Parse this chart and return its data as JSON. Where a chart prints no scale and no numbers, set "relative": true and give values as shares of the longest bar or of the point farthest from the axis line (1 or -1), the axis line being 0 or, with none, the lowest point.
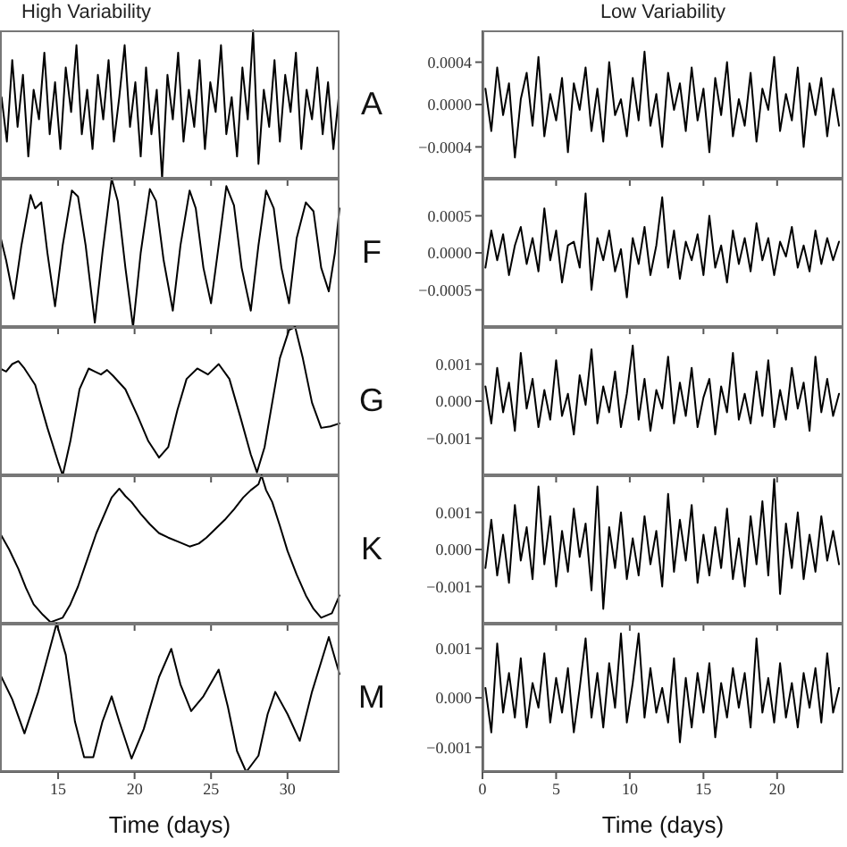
{
  "chart_data": [
    {
      "type": "line",
      "title": "High Variability",
      "relative": true,
      "annotations": [
        "A"
      ],
      "tick_labels": false,
      "xlim": [
        11.2,
        33.4
      ],
      "xticks": [
        15,
        20,
        25,
        30
      ],
      "x": [
        11.3,
        11.65,
        12,
        12.35,
        12.7,
        13.05,
        13.4,
        13.75,
        14.1,
        14.45,
        14.8,
        15.15,
        15.5,
        15.85,
        16.2,
        16.55,
        16.9,
        17.25,
        17.6,
        17.95,
        18.3,
        18.65,
        19,
        19.35,
        19.7,
        20.05,
        20.4,
        20.75,
        21.1,
        21.45,
        21.8,
        22.15,
        22.5,
        22.85,
        23.2,
        23.55,
        23.9,
        24.25,
        24.6,
        24.95,
        25.3,
        25.65,
        26,
        26.35,
        26.7,
        27.05,
        27.4,
        27.75,
        28.1,
        28.45,
        28.8,
        29.15,
        29.5,
        29.85,
        30.2,
        30.55,
        30.9,
        31.25,
        31.6,
        31.95,
        32.3,
        32.65,
        33,
        33.35
      ],
      "series": [
        {
          "color": "#000000",
          "values": [
            0.55,
            0.25,
            0.8,
            0.35,
            0.7,
            0.15,
            0.6,
            0.4,
            0.85,
            0.3,
            0.65,
            0.2,
            0.75,
            0.45,
            0.9,
            0.3,
            0.6,
            0.2,
            0.7,
            0.4,
            0.8,
            0.25,
            0.55,
            0.9,
            0.35,
            0.65,
            0.15,
            0.75,
            0.3,
            0.6,
            0.0,
            0.7,
            0.4,
            0.85,
            0.25,
            0.6,
            0.35,
            0.8,
            0.2,
            0.65,
            0.45,
            0.9,
            0.3,
            0.55,
            0.15,
            0.75,
            0.4,
            1.0,
            0.1,
            0.6,
            0.35,
            0.8,
            0.25,
            0.7,
            0.45,
            0.85,
            0.2,
            0.6,
            0.4,
            0.75,
            0.3,
            0.65,
            0.2,
            0.55
          ]
        }
      ]
    },
    {
      "type": "line",
      "title": "Low Variability",
      "tick_labels": "y",
      "xlim": [
        0,
        24.5
      ],
      "xticks": [
        0,
        5,
        10,
        15,
        20
      ],
      "ylim": [
        -0.0007,
        0.0007
      ],
      "yticks": [
        {
          "value": -0.0004,
          "label": "−0.0004"
        },
        {
          "value": 0,
          "label": "0.0000"
        },
        {
          "value": 0.0004,
          "label": "0.0004"
        }
      ],
      "x": [
        0.2,
        0.6,
        1,
        1.4,
        1.8,
        2.2,
        2.6,
        3,
        3.4,
        3.8,
        4.2,
        4.6,
        5,
        5.4,
        5.8,
        6.2,
        6.6,
        7,
        7.4,
        7.8,
        8.2,
        8.6,
        9,
        9.4,
        9.8,
        10.2,
        10.6,
        11,
        11.4,
        11.8,
        12.2,
        12.6,
        13,
        13.4,
        13.8,
        14.2,
        14.6,
        15,
        15.4,
        15.8,
        16.2,
        16.6,
        17,
        17.4,
        17.8,
        18.2,
        18.6,
        19,
        19.4,
        19.8,
        20.2,
        20.6,
        21,
        21.4,
        21.8,
        22.2,
        22.6,
        23,
        23.4,
        23.8,
        24.2
      ],
      "series": [
        {
          "color": "#000000",
          "values": [
            0.00015,
            -0.00025,
            0.00035,
            -0.0001,
            0.0002,
            -0.0005,
            5e-05,
            0.0003,
            -0.0002,
            0.00045,
            -0.0003,
            0.0001,
            -0.00015,
            0.00025,
            -0.00045,
            0.0002,
            -5e-05,
            0.00035,
            -0.00025,
            0.00015,
            -0.00035,
            0.0004,
            -0.0001,
            5e-05,
            -0.0003,
            0.00025,
            -0.00015,
            0.0005,
            -0.0002,
            0.0001,
            -0.0004,
            0.0003,
            -5e-05,
            0.0002,
            -0.00025,
            0.00035,
            -0.00015,
            0.00015,
            -0.00045,
            0.00025,
            -0.0001,
            0.0004,
            -0.0003,
            5e-05,
            -0.0002,
            0.0003,
            -0.00035,
            0.00015,
            -5e-05,
            0.00045,
            -0.00025,
            0.0001,
            -0.00015,
            0.00035,
            -0.0004,
            0.0002,
            -0.0001,
            0.00025,
            -0.0003,
            0.00015,
            -0.0002
          ]
        }
      ]
    },
    {
      "type": "line",
      "relative": true,
      "annotations": [
        "F"
      ],
      "tick_labels": false,
      "xlim": [
        11.2,
        33.4
      ],
      "xticks": [
        15,
        20,
        25,
        30
      ],
      "x": [
        11.2,
        11.6,
        12.1,
        12.6,
        13.2,
        13.5,
        13.9,
        14.3,
        14.8,
        15.3,
        15.9,
        16.3,
        16.8,
        17.4,
        17.9,
        18.5,
        18.9,
        19.4,
        19.9,
        20.4,
        21,
        21.4,
        21.9,
        22.5,
        23,
        23.6,
        24,
        24.5,
        25,
        25.5,
        26,
        26.5,
        27,
        27.6,
        28.1,
        28.6,
        29.1,
        29.6,
        30.1,
        30.6,
        31.2,
        31.7,
        32.2,
        32.7,
        33.1,
        33.4
      ],
      "series": [
        {
          "color": "#000000",
          "values": [
            0.62,
            0.45,
            0.19,
            0.55,
            0.89,
            0.8,
            0.84,
            0.5,
            0.14,
            0.55,
            0.92,
            0.88,
            0.55,
            0.03,
            0.5,
            1.0,
            0.85,
            0.4,
            0.0,
            0.5,
            0.93,
            0.85,
            0.45,
            0.11,
            0.55,
            0.92,
            0.8,
            0.4,
            0.16,
            0.55,
            0.95,
            0.82,
            0.4,
            0.11,
            0.55,
            0.92,
            0.8,
            0.4,
            0.16,
            0.6,
            0.84,
            0.78,
            0.4,
            0.24,
            0.5,
            0.8
          ]
        }
      ]
    },
    {
      "type": "line",
      "tick_labels": "y",
      "xlim": [
        0,
        24.5
      ],
      "xticks": [
        0,
        5,
        10,
        15,
        20
      ],
      "ylim": [
        -0.001,
        0.001
      ],
      "yticks": [
        {
          "value": -0.0005,
          "label": "−0.0005"
        },
        {
          "value": 0,
          "label": "0.0000"
        },
        {
          "value": 0.0005,
          "label": "0.0005"
        }
      ],
      "x": [
        0.2,
        0.6,
        1,
        1.4,
        1.8,
        2.2,
        2.6,
        3,
        3.4,
        3.8,
        4.2,
        4.6,
        5,
        5.4,
        5.8,
        6.2,
        6.6,
        7,
        7.4,
        7.8,
        8.2,
        8.6,
        9,
        9.4,
        9.8,
        10.2,
        10.6,
        11,
        11.4,
        11.8,
        12.2,
        12.6,
        13,
        13.4,
        13.8,
        14.2,
        14.6,
        15,
        15.4,
        15.8,
        16.2,
        16.6,
        17,
        17.4,
        17.8,
        18.2,
        18.6,
        19,
        19.4,
        19.8,
        20.2,
        20.6,
        21,
        21.4,
        21.8,
        22.2,
        22.6,
        23,
        23.4,
        23.8,
        24.2
      ],
      "series": [
        {
          "color": "#000000",
          "values": [
            -0.0002,
            0.0003,
            -0.0001,
            0.00025,
            -0.0003,
            0.0001,
            0.00035,
            -0.00015,
            0.0002,
            -0.00025,
            0.0006,
            -0.0001,
            0.0003,
            -0.0004,
            0.0001,
            0.00015,
            -0.0002,
            0.0008,
            -0.0005,
            0.0002,
            -0.0001,
            0.0003,
            -0.00025,
            5e-05,
            -0.0006,
            0.0002,
            -0.00015,
            0.00035,
            -0.0003,
            0.0001,
            0.00075,
            -0.0002,
            0.0003,
            -0.00035,
            0.00015,
            -0.0001,
            0.00025,
            -0.0003,
            0.0005,
            -0.0002,
            0.0001,
            -0.0004,
            0.0003,
            -0.00015,
            0.0002,
            -0.00025,
            0.0004,
            -0.0001,
            0.0002,
            -0.0003,
            0.00015,
            -5e-05,
            0.00035,
            -0.0002,
            0.0001,
            -0.00025,
            0.0003,
            -0.00015,
            0.0002,
            -0.0001,
            0.00015
          ]
        }
      ]
    },
    {
      "type": "line",
      "relative": true,
      "annotations": [
        "G"
      ],
      "tick_labels": false,
      "xlim": [
        11.2,
        33.4
      ],
      "xticks": [
        15,
        20,
        25,
        30
      ],
      "x": [
        11.2,
        11.6,
        12,
        12.4,
        12.8,
        13.5,
        14.3,
        15,
        15.3,
        15.8,
        16.4,
        17,
        17.4,
        17.8,
        18.2,
        18.6,
        19.4,
        20.2,
        20.9,
        21.6,
        22.2,
        22.8,
        23.4,
        24.1,
        24.8,
        25.1,
        25.5,
        26.2,
        26.9,
        27.6,
        28,
        28.5,
        29,
        29.5,
        30.1,
        30.5,
        31,
        31.6,
        32.2,
        32.8,
        33.4
      ],
      "series": [
        {
          "color": "#000000",
          "values": [
            0.72,
            0.7,
            0.75,
            0.77,
            0.72,
            0.61,
            0.32,
            0.09,
            0.0,
            0.23,
            0.58,
            0.72,
            0.7,
            0.68,
            0.71,
            0.67,
            0.58,
            0.4,
            0.23,
            0.12,
            0.19,
            0.44,
            0.65,
            0.72,
            0.68,
            0.71,
            0.75,
            0.65,
            0.4,
            0.14,
            0.02,
            0.19,
            0.49,
            0.79,
            0.98,
            1.0,
            0.79,
            0.49,
            0.32,
            0.33,
            0.35
          ]
        }
      ]
    },
    {
      "type": "line",
      "tick_labels": "y",
      "xlim": [
        0,
        24.5
      ],
      "xticks": [
        0,
        5,
        10,
        15,
        20
      ],
      "ylim": [
        -0.002,
        0.002
      ],
      "yticks": [
        {
          "value": -0.001,
          "label": "−0.001"
        },
        {
          "value": 0,
          "label": "0.000"
        },
        {
          "value": 0.001,
          "label": "0.001"
        }
      ],
      "x": [
        0.2,
        0.6,
        1,
        1.4,
        1.8,
        2.2,
        2.6,
        3,
        3.4,
        3.8,
        4.2,
        4.6,
        5,
        5.4,
        5.8,
        6.2,
        6.6,
        7,
        7.4,
        7.8,
        8.2,
        8.6,
        9,
        9.4,
        9.8,
        10.2,
        10.6,
        11,
        11.4,
        11.8,
        12.2,
        12.6,
        13,
        13.4,
        13.8,
        14.2,
        14.6,
        15,
        15.4,
        15.8,
        16.2,
        16.6,
        17,
        17.4,
        17.8,
        18.2,
        18.6,
        19,
        19.4,
        19.8,
        20.2,
        20.6,
        21,
        21.4,
        21.8,
        22.2,
        22.6,
        23,
        23.4,
        23.8,
        24.2
      ],
      "series": [
        {
          "color": "#000000",
          "values": [
            0.0004,
            -0.0006,
            0.0009,
            -0.0003,
            0.0005,
            -0.0008,
            0.0013,
            -0.0002,
            0.0006,
            -0.0007,
            0.0003,
            -0.0005,
            0.0011,
            -0.0004,
            0.0002,
            -0.0009,
            0.0007,
            -0.0001,
            0.0014,
            -0.0006,
            0.0004,
            -0.0003,
            0.0008,
            -0.0007,
            0.0002,
            0.0015,
            -0.0005,
            0.0006,
            -0.0008,
            0.0003,
            -0.0002,
            0.0012,
            -0.0006,
            0.0005,
            -0.0004,
            0.0009,
            -0.0007,
            0.0001,
            0.0006,
            -0.0009,
            0.0004,
            -0.0003,
            0.0013,
            -0.0005,
            0.0002,
            -0.0006,
            0.0008,
            -0.0004,
            0.0011,
            -0.0007,
            0.0003,
            -0.0005,
            0.0009,
            -0.0002,
            0.0005,
            -0.0008,
            0.0012,
            -0.0003,
            0.0006,
            -0.0004,
            0.0002
          ]
        }
      ]
    },
    {
      "type": "line",
      "relative": true,
      "annotations": [
        "K"
      ],
      "tick_labels": false,
      "xlim": [
        11.2,
        33.4
      ],
      "xticks": [
        15,
        20,
        25,
        30
      ],
      "x": [
        11.2,
        11.8,
        12.4,
        12.9,
        13.4,
        14,
        14.5,
        15.3,
        15.8,
        16.3,
        16.9,
        17.5,
        18.5,
        19,
        19.4,
        19.8,
        20.4,
        21,
        21.6,
        22.2,
        22.9,
        23.6,
        24.2,
        24.7,
        25.3,
        25.9,
        26.5,
        27.1,
        27.6,
        28.1,
        28.3,
        28.6,
        29,
        29.5,
        30,
        30.6,
        31.2,
        31.7,
        32.2,
        32.9,
        33.4
      ],
      "series": [
        {
          "color": "#000000",
          "values": [
            0.61,
            0.5,
            0.37,
            0.24,
            0.13,
            0.06,
            0.01,
            0.04,
            0.13,
            0.25,
            0.43,
            0.61,
            0.85,
            0.91,
            0.86,
            0.82,
            0.74,
            0.67,
            0.61,
            0.58,
            0.55,
            0.52,
            0.54,
            0.58,
            0.64,
            0.7,
            0.77,
            0.85,
            0.9,
            0.94,
            1.0,
            0.9,
            0.82,
            0.66,
            0.49,
            0.33,
            0.19,
            0.1,
            0.04,
            0.07,
            0.19
          ]
        }
      ]
    },
    {
      "type": "line",
      "tick_labels": "y",
      "xlim": [
        0,
        24.5
      ],
      "xticks": [
        0,
        5,
        10,
        15,
        20
      ],
      "ylim": [
        -0.002,
        0.002
      ],
      "yticks": [
        {
          "value": -0.001,
          "label": "−0.001"
        },
        {
          "value": 0,
          "label": "0.000"
        },
        {
          "value": 0.001,
          "label": "0.001"
        }
      ],
      "x": [
        0.2,
        0.6,
        1,
        1.4,
        1.8,
        2.2,
        2.6,
        3,
        3.4,
        3.8,
        4.2,
        4.6,
        5,
        5.4,
        5.8,
        6.2,
        6.6,
        7,
        7.4,
        7.8,
        8.2,
        8.6,
        9,
        9.4,
        9.8,
        10.2,
        10.6,
        11,
        11.4,
        11.8,
        12.2,
        12.6,
        13,
        13.4,
        13.8,
        14.2,
        14.6,
        15,
        15.4,
        15.8,
        16.2,
        16.6,
        17,
        17.4,
        17.8,
        18.2,
        18.6,
        19,
        19.4,
        19.8,
        20.2,
        20.6,
        21,
        21.4,
        21.8,
        22.2,
        22.6,
        23,
        23.4,
        23.8,
        24.2
      ],
      "series": [
        {
          "color": "#000000",
          "values": [
            -0.0005,
            0.0008,
            -0.0007,
            0.0004,
            -0.0009,
            0.0012,
            -0.0003,
            0.0006,
            -0.0008,
            0.0017,
            -0.0004,
            0.0009,
            -0.001,
            0.0005,
            -0.0006,
            0.0011,
            -0.0002,
            0.0007,
            -0.0011,
            0.0017,
            -0.0016,
            0.0006,
            -0.0005,
            0.001,
            -0.0008,
            0.0003,
            -0.0007,
            0.0009,
            -0.0004,
            0.0005,
            -0.001,
            0.0015,
            -0.0006,
            0.0008,
            -0.0003,
            0.0012,
            -0.0009,
            0.0004,
            -0.0007,
            0.0006,
            -0.0005,
            0.0011,
            -0.0008,
            0.0003,
            -0.001,
            0.0009,
            -0.0004,
            0.0013,
            -0.0007,
            0.0019,
            -0.0012,
            0.0007,
            -0.0005,
            0.001,
            -0.0008,
            0.0004,
            -0.0006,
            0.0009,
            -0.0003,
            0.0005,
            -0.0004
          ]
        }
      ]
    },
    {
      "type": "line",
      "relative": true,
      "annotations": [
        "M"
      ],
      "tick_labels": "x",
      "xlabel": "Time (days)",
      "xlim": [
        11.2,
        33.4
      ],
      "xticks": [
        15,
        20,
        25,
        30
      ],
      "x": [
        11.2,
        12,
        12.8,
        13.7,
        14.9,
        15.5,
        16.1,
        16.7,
        17.3,
        17.9,
        18.5,
        19,
        19.8,
        20.6,
        21.6,
        22.4,
        23,
        23.7,
        24.5,
        25.5,
        26.1,
        26.7,
        27.3,
        28.1,
        28.7,
        29.2,
        30,
        30.8,
        31.6,
        32.7,
        33.4
      ],
      "series": [
        {
          "color": "#000000",
          "values": [
            0.66,
            0.49,
            0.26,
            0.54,
            1.0,
            0.79,
            0.34,
            0.1,
            0.1,
            0.34,
            0.51,
            0.34,
            0.09,
            0.29,
            0.64,
            0.83,
            0.59,
            0.41,
            0.51,
            0.69,
            0.44,
            0.14,
            0.0,
            0.11,
            0.39,
            0.54,
            0.39,
            0.21,
            0.54,
            0.91,
            0.66
          ]
        }
      ]
    },
    {
      "type": "line",
      "xlabel": "Time (days)",
      "xlim": [
        0,
        24.5
      ],
      "xticks": [
        0,
        5,
        10,
        15,
        20
      ],
      "ylim": [
        -0.0015,
        0.0015
      ],
      "yticks": [
        {
          "value": -0.001,
          "label": "−0.001"
        },
        {
          "value": 0,
          "label": "0.000"
        },
        {
          "value": 0.001,
          "label": "0.001"
        }
      ],
      "x": [
        0.2,
        0.6,
        1,
        1.4,
        1.8,
        2.2,
        2.6,
        3,
        3.4,
        3.8,
        4.2,
        4.6,
        5,
        5.4,
        5.8,
        6.2,
        6.6,
        7,
        7.4,
        7.8,
        8.2,
        8.6,
        9,
        9.4,
        9.8,
        10.2,
        10.6,
        11,
        11.4,
        11.8,
        12.2,
        12.6,
        13,
        13.4,
        13.8,
        14.2,
        14.6,
        15,
        15.4,
        15.8,
        16.2,
        16.6,
        17,
        17.4,
        17.8,
        18.2,
        18.6,
        19,
        19.4,
        19.8,
        20.2,
        20.6,
        21,
        21.4,
        21.8,
        22.2,
        22.6,
        23,
        23.4,
        23.8,
        24.2
      ],
      "series": [
        {
          "color": "#000000",
          "values": [
            0.0002,
            -0.0007,
            0.0011,
            -0.0003,
            0.0005,
            -0.0004,
            0.0008,
            -0.0006,
            0.0003,
            -0.0002,
            0.0009,
            -0.0005,
            0.0004,
            -0.0003,
            0.0006,
            -0.0007,
            0.0002,
            0.0012,
            -0.0004,
            0.0005,
            -0.0006,
            0.0007,
            -0.0002,
            0.0013,
            -0.0005,
            0.0003,
            0.0013,
            -0.0004,
            0.0006,
            -0.0003,
            0.0002,
            -0.0005,
            0.0008,
            -0.0009,
            0.0004,
            -0.0006,
            0.0005,
            -0.0003,
            0.0007,
            -0.0008,
            0.0003,
            -0.0004,
            0.0006,
            -0.0002,
            0.0005,
            -0.0006,
            0.0012,
            -0.0003,
            0.0004,
            -0.0005,
            0.0007,
            -0.0004,
            0.0003,
            -0.0006,
            0.0005,
            -0.0002,
            0.0006,
            -0.0005,
            0.0009,
            -0.0003,
            0.0002
          ]
        }
      ]
    }
  ]
}
